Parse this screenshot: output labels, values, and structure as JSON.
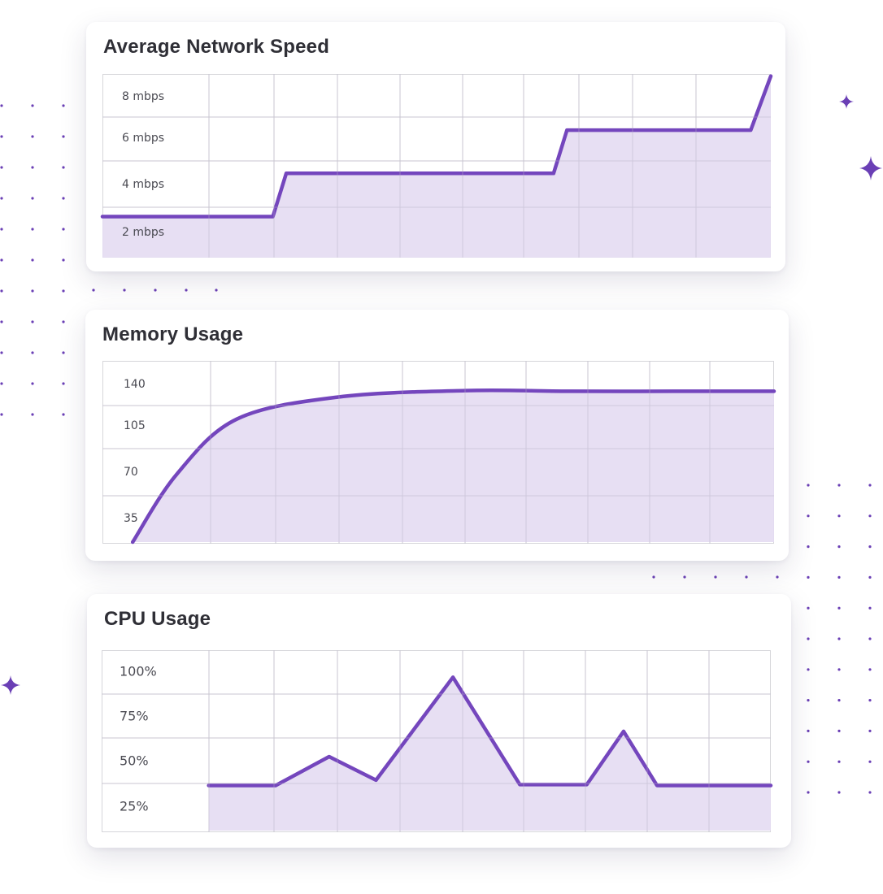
{
  "colors": {
    "accent": "#7446bd",
    "fill": "#e4dcf2",
    "grid": "#d6d6da",
    "dots": "#6a3fb5",
    "card_bg": "#ffffff",
    "title": "#2f2f36"
  },
  "chart_data": [
    {
      "type": "area",
      "title": "Average Network Speed",
      "unit": "mbps",
      "y_tick_labels": [
        "8 mbps",
        "6 mbps",
        "4 mbps",
        "2 mbps"
      ],
      "y_ticks": [
        8,
        6,
        4,
        2
      ],
      "ylim": [
        0,
        8.5
      ],
      "xlim": [
        0,
        10
      ],
      "grid": true,
      "line_shape": "straight",
      "series": [
        {
          "x": [
            0,
            2.55,
            2.75,
            6.75,
            6.95,
            9.7,
            10
          ],
          "y": [
            1.9,
            1.9,
            3.9,
            3.9,
            5.9,
            5.9,
            8.4
          ]
        }
      ]
    },
    {
      "type": "area",
      "title": "Memory Usage",
      "y_tick_labels": [
        "140",
        "105",
        "70",
        "35"
      ],
      "y_ticks": [
        140,
        105,
        70,
        35
      ],
      "ylim": [
        0,
        140
      ],
      "xlim": [
        0,
        10
      ],
      "grid": true,
      "line_shape": "smooth",
      "series": [
        {
          "x": [
            0.45,
            1.1,
            2.0,
            3.5,
            5.4,
            7.0,
            8.5,
            10
          ],
          "y": [
            0,
            52,
            95,
            112,
            117,
            116.5,
            116.5,
            116.5
          ]
        }
      ]
    },
    {
      "type": "area",
      "title": "CPU Usage",
      "y_tick_labels": [
        "100%",
        "75%",
        "50%",
        "25%"
      ],
      "y_ticks": [
        100,
        75,
        50,
        25
      ],
      "ylim": [
        0,
        100
      ],
      "xlim": [
        0,
        10
      ],
      "grid": true,
      "line_shape": "straight",
      "series": [
        {
          "x": [
            1.6,
            2.6,
            3.4,
            4.1,
            5.25,
            6.25,
            7.25,
            7.8,
            8.3,
            10
          ],
          "y": [
            25,
            25,
            41,
            28,
            85,
            25.5,
            25.5,
            55,
            25,
            25
          ]
        }
      ]
    }
  ]
}
